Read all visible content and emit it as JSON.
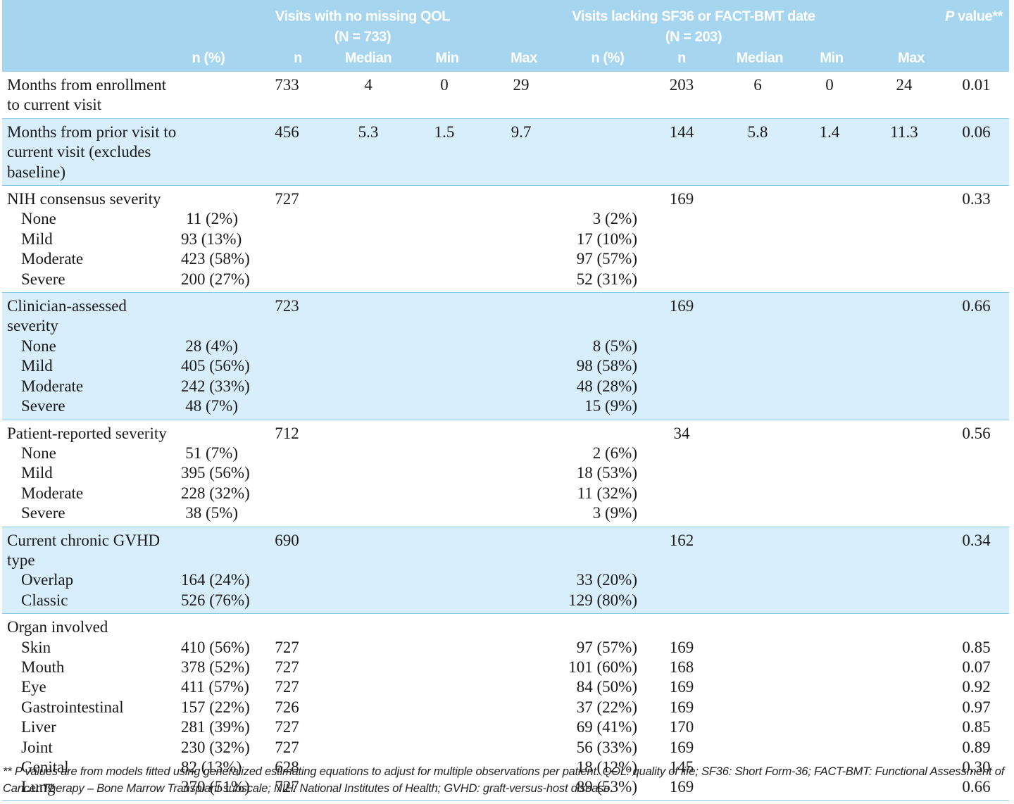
{
  "header": {
    "group1": {
      "title": "Visits with no missing QOL",
      "n": "(N = 733)"
    },
    "group2": {
      "title": "Visits lacking SF36 or FACT-BMT date",
      "n": "(N = 203)"
    },
    "p_italic": "P",
    "p_rest": "value**",
    "columns": {
      "npct1": "n (%)",
      "n1": "n",
      "median1": "Median",
      "min1": "Min",
      "max1": "Max",
      "npct2": "n (%)",
      "n2": "n",
      "median2": "Median",
      "min2": "Min",
      "max2": "Max"
    }
  },
  "groups": [
    {
      "label": "Months from enrollment to current visit",
      "cells": {
        "n1": "733",
        "median1": "4",
        "min1": "0",
        "max1": "29",
        "n2": "203",
        "median2": "6",
        "min2": "0",
        "max2": "24",
        "p": "0.01"
      }
    },
    {
      "label": "Months from prior visit to current visit (excludes baseline)",
      "cells": {
        "n1": "456",
        "median1": "5.3",
        "min1": "1.5",
        "max1": "9.7",
        "n2": "144",
        "median2": "5.8",
        "min2": "1.4",
        "max2": "11.3",
        "p": "0.06"
      }
    },
    {
      "label": "NIH consensus severity",
      "cells": {
        "n1": "727",
        "n2": "169",
        "p": "0.33"
      },
      "items": [
        {
          "label": "None",
          "cells": {
            "npct1": "11 (2%)",
            "npct2": "3 (2%)"
          }
        },
        {
          "label": "Mild",
          "cells": {
            "npct1": "93 (13%)",
            "npct2": "17 (10%)"
          }
        },
        {
          "label": "Moderate",
          "cells": {
            "npct1": "423 (58%)",
            "npct2": "97 (57%)"
          }
        },
        {
          "label": "Severe",
          "cells": {
            "npct1": "200 (27%)",
            "npct2": "52 (31%)"
          }
        }
      ]
    },
    {
      "label": "Clinician-assessed severity",
      "cells": {
        "n1": "723",
        "n2": "169",
        "p": "0.66"
      },
      "items": [
        {
          "label": "None",
          "cells": {
            "npct1": "28 (4%)",
            "npct2": "8 (5%)"
          }
        },
        {
          "label": "Mild",
          "cells": {
            "npct1": "405 (56%)",
            "npct2": "98 (58%)"
          }
        },
        {
          "label": "Moderate",
          "cells": {
            "npct1": "242 (33%)",
            "npct2": "48 (28%)"
          }
        },
        {
          "label": "Severe",
          "cells": {
            "npct1": "48 (7%)",
            "npct2": "15 (9%)"
          }
        }
      ]
    },
    {
      "label": "Patient-reported severity",
      "cells": {
        "n1": "712",
        "n2": "34",
        "p": "0.56"
      },
      "items": [
        {
          "label": "None",
          "cells": {
            "npct1": "51 (7%)",
            "npct2": "2 (6%)"
          }
        },
        {
          "label": "Mild",
          "cells": {
            "npct1": "395 (56%)",
            "npct2": "18 (53%)"
          }
        },
        {
          "label": "Moderate",
          "cells": {
            "npct1": "228 (32%)",
            "npct2": "11 (32%)"
          }
        },
        {
          "label": "Severe",
          "cells": {
            "npct1": "38 (5%)",
            "npct2": "3 (9%)"
          }
        }
      ]
    },
    {
      "label": "Current chronic GVHD type",
      "cells": {
        "n1": "690",
        "n2": "162",
        "p": "0.34"
      },
      "items": [
        {
          "label": "Overlap",
          "cells": {
            "npct1": "164 (24%)",
            "npct2": "33 (20%)"
          }
        },
        {
          "label": "Classic",
          "cells": {
            "npct1": "526 (76%)",
            "npct2": "129 (80%)"
          }
        }
      ]
    },
    {
      "label": "Organ involved",
      "cells": {},
      "items": [
        {
          "label": "Skin",
          "cells": {
            "npct1": "410 (56%)",
            "n1": "727",
            "npct2": "97 (57%)",
            "n2": "169",
            "p": "0.85"
          }
        },
        {
          "label": "Mouth",
          "cells": {
            "npct1": "378 (52%)",
            "n1": "727",
            "npct2": "101 (60%)",
            "n2": "168",
            "p": "0.07"
          }
        },
        {
          "label": "Eye",
          "cells": {
            "npct1": "411 (57%)",
            "n1": "727",
            "npct2": "84 (50%)",
            "n2": "169",
            "p": "0.92"
          }
        },
        {
          "label": "Gastrointestinal",
          "cells": {
            "npct1": "157 (22%)",
            "n1": "726",
            "npct2": "37 (22%)",
            "n2": "169",
            "p": "0.97"
          }
        },
        {
          "label": "Liver",
          "cells": {
            "npct1": "281 (39%)",
            "n1": "727",
            "npct2": "69 (41%)",
            "n2": "170",
            "p": "0.85"
          }
        },
        {
          "label": "Joint",
          "cells": {
            "npct1": "230 (32%)",
            "n1": "727",
            "npct2": "56 (33%)",
            "n2": "169",
            "p": "0.89"
          }
        },
        {
          "label": "Genital",
          "cells": {
            "npct1": "82 (13%)",
            "n1": "628",
            "npct2": "18 (12%)",
            "n2": "145",
            "p": "0.30"
          }
        },
        {
          "label": "Lung",
          "cells": {
            "npct1": "370 (51%)",
            "n1": "727",
            "npct2": "89 (53%)",
            "n2": "169",
            "p": "0.66"
          }
        }
      ]
    }
  ],
  "footnote": "** P values are from models fitted using generalized estimating equations to adjust for multiple observations per patient. QOL: quality of life; SF36: Short Form-36; FACT-BMT: Functional Assessment of Cancer Therapy – Bone Marrow Transplant subscale; NIH: National Institutes of Health; GVHD: graft-versus-host disease."
}
